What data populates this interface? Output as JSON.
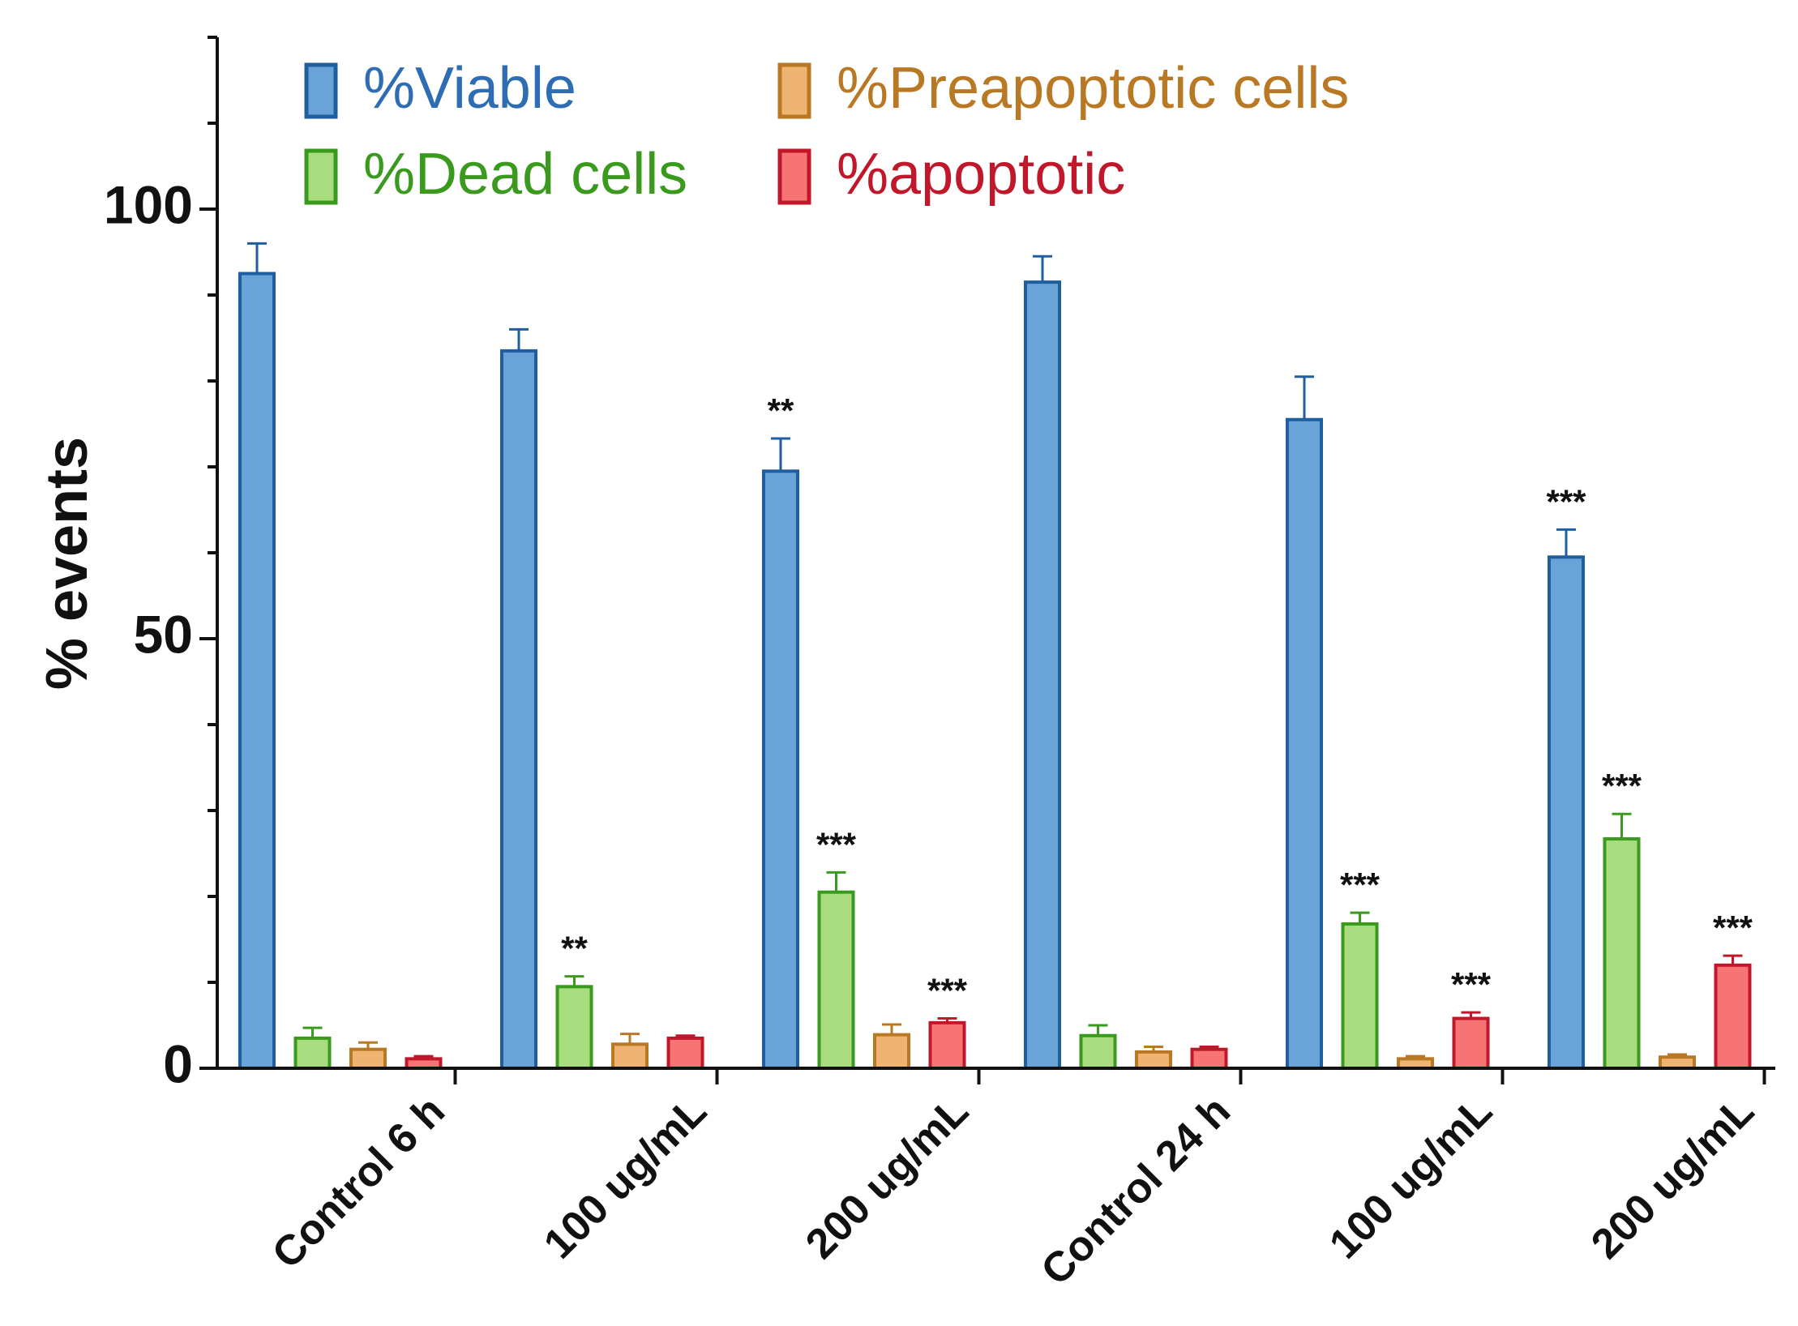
{
  "chart_data": {
    "type": "bar",
    "title": "",
    "xlabel": "",
    "ylabel": "% events",
    "ylim": [
      0,
      120
    ],
    "yticks": [
      0,
      50,
      100
    ],
    "grid": false,
    "legend_position": "top-left",
    "categories": [
      "Control 6 h",
      "100 ug/mL",
      "200 ug/mL",
      "Control 24 h",
      "100 ug/mL",
      "200 ug/mL"
    ],
    "series": [
      {
        "name": "%Viable",
        "color": "#6aa3d8",
        "stroke": "#1f5fa0",
        "label_color": "#2e6db3",
        "values": [
          92.5,
          83.5,
          69.5,
          91.5,
          75.5,
          59.5
        ],
        "errors": [
          3.5,
          2.5,
          3.8,
          3.0,
          5.0,
          3.2
        ],
        "significance": [
          "",
          "",
          "**",
          "",
          "",
          "***"
        ]
      },
      {
        "name": "%Dead cells",
        "color": "#a9dc7e",
        "stroke": "#3a9a1e",
        "label_color": "#3a9a1e",
        "values": [
          3.5,
          9.5,
          20.5,
          3.8,
          16.8,
          26.7
        ],
        "errors": [
          1.2,
          1.2,
          2.3,
          1.2,
          1.3,
          2.9
        ],
        "significance": [
          "",
          "**",
          "***",
          "",
          "***",
          "***"
        ]
      },
      {
        "name": "%Preapoptotic cells",
        "color": "#f0b472",
        "stroke": "#b87824",
        "label_color": "#b87824",
        "values": [
          2.2,
          2.8,
          3.9,
          1.9,
          1.1,
          1.3
        ],
        "errors": [
          0.8,
          1.2,
          1.2,
          0.6,
          0.3,
          0.3
        ],
        "significance": [
          "",
          "",
          "",
          "",
          "",
          ""
        ]
      },
      {
        "name": "%apoptotic",
        "color": "#f77474",
        "stroke": "#c0182a",
        "label_color": "#c0182a",
        "values": [
          1.1,
          3.5,
          5.3,
          2.2,
          5.8,
          12.0
        ],
        "errors": [
          0.3,
          0.3,
          0.5,
          0.3,
          0.7,
          1.1
        ],
        "significance": [
          "",
          "",
          "***",
          "",
          "***",
          "***"
        ]
      }
    ]
  }
}
